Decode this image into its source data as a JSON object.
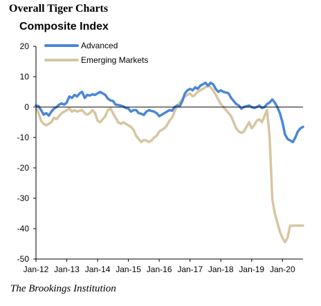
{
  "header": {
    "title": "Overall Tiger Charts"
  },
  "source": "The Brookings Institution",
  "colors": {
    "advanced": "#4a86d6",
    "emerging": "#d6c6a0",
    "axis": "#000000"
  },
  "chart_data": {
    "type": "line",
    "title": "Composite Index",
    "xlabel": "",
    "ylabel": "",
    "ylim": [
      -50,
      20
    ],
    "xlim": [
      "2012-01",
      "2020-09"
    ],
    "y_ticks": [
      20,
      10,
      0,
      -10,
      -20,
      -30,
      -40,
      -50
    ],
    "x_tick_labels": [
      "Jan-12",
      "Jan-13",
      "Jan-14",
      "Jan-15",
      "Jan-16",
      "Jan-17",
      "Jan-18",
      "Jan-19",
      "Jan-20"
    ],
    "grid": false,
    "legend_position": "top-left",
    "series": [
      {
        "name": "Advanced",
        "color": "#4a86d6",
        "x": [
          "2012-01",
          "2012-02",
          "2012-03",
          "2012-04",
          "2012-05",
          "2012-06",
          "2012-07",
          "2012-08",
          "2012-09",
          "2012-10",
          "2012-11",
          "2012-12",
          "2013-01",
          "2013-02",
          "2013-03",
          "2013-04",
          "2013-05",
          "2013-06",
          "2013-07",
          "2013-08",
          "2013-09",
          "2013-10",
          "2013-11",
          "2013-12",
          "2014-01",
          "2014-02",
          "2014-03",
          "2014-04",
          "2014-05",
          "2014-06",
          "2014-07",
          "2014-08",
          "2014-09",
          "2014-10",
          "2014-11",
          "2014-12",
          "2015-01",
          "2015-02",
          "2015-03",
          "2015-04",
          "2015-05",
          "2015-06",
          "2015-07",
          "2015-08",
          "2015-09",
          "2015-10",
          "2015-11",
          "2015-12",
          "2016-01",
          "2016-02",
          "2016-03",
          "2016-04",
          "2016-05",
          "2016-06",
          "2016-07",
          "2016-08",
          "2016-09",
          "2016-10",
          "2016-11",
          "2016-12",
          "2017-01",
          "2017-02",
          "2017-03",
          "2017-04",
          "2017-05",
          "2017-06",
          "2017-07",
          "2017-08",
          "2017-09",
          "2017-10",
          "2017-11",
          "2017-12",
          "2018-01",
          "2018-02",
          "2018-03",
          "2018-04",
          "2018-05",
          "2018-06",
          "2018-07",
          "2018-08",
          "2018-09",
          "2018-10",
          "2018-11",
          "2018-12",
          "2019-01",
          "2019-02",
          "2019-03",
          "2019-04",
          "2019-05",
          "2019-06",
          "2019-07",
          "2019-08",
          "2019-09",
          "2019-10",
          "2019-11",
          "2019-12",
          "2020-01",
          "2020-02",
          "2020-03",
          "2020-04",
          "2020-05",
          "2020-06",
          "2020-07",
          "2020-08",
          "2020-09"
        ],
        "values": [
          0.5,
          0.3,
          -1.0,
          -2.5,
          -2.0,
          -2.8,
          -1.5,
          -0.5,
          0.0,
          0.8,
          1.2,
          0.8,
          1.5,
          3.5,
          3.0,
          4.0,
          3.5,
          4.5,
          5.0,
          3.0,
          4.0,
          3.8,
          4.2,
          4.0,
          4.5,
          5.0,
          4.5,
          4.0,
          2.8,
          2.2,
          2.0,
          0.8,
          0.7,
          0.5,
          0.2,
          -0.3,
          -0.5,
          -1.5,
          -1.0,
          -1.0,
          -2.0,
          -2.2,
          -2.6,
          -1.5,
          -1.0,
          -1.3,
          -1.5,
          -2.0,
          -3.0,
          -2.5,
          -2.0,
          -1.5,
          -1.0,
          -1.2,
          0.0,
          0.5,
          0.3,
          2.0,
          4.5,
          5.5,
          6.0,
          5.5,
          6.5,
          6.0,
          7.0,
          7.5,
          8.0,
          7.0,
          8.0,
          7.5,
          6.0,
          5.0,
          5.5,
          5.0,
          4.8,
          4.5,
          3.0,
          2.0,
          1.0,
          0.5,
          -0.5,
          0.0,
          0.3,
          0.5,
          0.0,
          -0.3,
          0.0,
          0.5,
          -0.3,
          0.0,
          1.0,
          1.5,
          2.5,
          1.5,
          0.0,
          -2.0,
          -5.0,
          -9.0,
          -10.5,
          -11.0,
          -11.5,
          -10.0,
          -8.0,
          -7.0,
          -6.5
        ]
      },
      {
        "name": "Emerging Markets",
        "color": "#d6c6a0",
        "x": [
          "2012-01",
          "2012-02",
          "2012-03",
          "2012-04",
          "2012-05",
          "2012-06",
          "2012-07",
          "2012-08",
          "2012-09",
          "2012-10",
          "2012-11",
          "2012-12",
          "2013-01",
          "2013-02",
          "2013-03",
          "2013-04",
          "2013-05",
          "2013-06",
          "2013-07",
          "2013-08",
          "2013-09",
          "2013-10",
          "2013-11",
          "2013-12",
          "2014-01",
          "2014-02",
          "2014-03",
          "2014-04",
          "2014-05",
          "2014-06",
          "2014-07",
          "2014-08",
          "2014-09",
          "2014-10",
          "2014-11",
          "2014-12",
          "2015-01",
          "2015-02",
          "2015-03",
          "2015-04",
          "2015-05",
          "2015-06",
          "2015-07",
          "2015-08",
          "2015-09",
          "2015-10",
          "2015-11",
          "2015-12",
          "2016-01",
          "2016-02",
          "2016-03",
          "2016-04",
          "2016-05",
          "2016-06",
          "2016-07",
          "2016-08",
          "2016-09",
          "2016-10",
          "2016-11",
          "2016-12",
          "2017-01",
          "2017-02",
          "2017-03",
          "2017-04",
          "2017-05",
          "2017-06",
          "2017-07",
          "2017-08",
          "2017-09",
          "2017-10",
          "2017-11",
          "2017-12",
          "2018-01",
          "2018-02",
          "2018-03",
          "2018-04",
          "2018-05",
          "2018-06",
          "2018-07",
          "2018-08",
          "2018-09",
          "2018-10",
          "2018-11",
          "2018-12",
          "2019-01",
          "2019-02",
          "2019-03",
          "2019-04",
          "2019-05",
          "2019-06",
          "2019-07",
          "2019-08",
          "2019-09",
          "2019-10",
          "2019-11",
          "2019-12",
          "2020-01",
          "2020-02",
          "2020-03",
          "2020-04",
          "2020-05",
          "2020-06",
          "2020-07",
          "2020-08",
          "2020-09"
        ],
        "values": [
          0.0,
          -2.0,
          -4.5,
          -5.5,
          -6.0,
          -5.5,
          -5.0,
          -3.5,
          -4.0,
          -3.0,
          -2.0,
          -1.5,
          -1.0,
          -0.5,
          -1.5,
          -1.0,
          -1.5,
          -1.2,
          -1.0,
          -2.0,
          -2.5,
          -2.0,
          -1.0,
          -2.0,
          -4.5,
          -5.0,
          -4.0,
          -3.0,
          -1.0,
          -0.5,
          -2.0,
          -3.5,
          -5.0,
          -5.5,
          -5.0,
          -5.5,
          -6.0,
          -6.5,
          -7.5,
          -9.5,
          -10.5,
          -11.5,
          -10.8,
          -11.0,
          -11.5,
          -11.0,
          -10.0,
          -9.5,
          -8.0,
          -7.5,
          -7.0,
          -6.0,
          -4.5,
          -3.5,
          -1.5,
          0.5,
          1.5,
          2.5,
          3.5,
          4.0,
          4.5,
          3.5,
          4.0,
          5.0,
          5.5,
          6.0,
          6.5,
          7.0,
          6.5,
          5.5,
          4.0,
          2.5,
          1.0,
          0.0,
          -1.0,
          -2.0,
          -3.0,
          -5.0,
          -7.0,
          -8.0,
          -8.5,
          -8.0,
          -6.5,
          -5.0,
          -7.0,
          -6.0,
          -4.5,
          -4.0,
          -5.0,
          -3.0,
          -1.0,
          -10.0,
          -30.0,
          -35.0,
          -38.0,
          -41.0,
          -43.0,
          -44.5,
          -43.0,
          -39.0,
          -39.0,
          -39.0,
          -39.0,
          -39.0,
          -39.0
        ]
      }
    ]
  }
}
